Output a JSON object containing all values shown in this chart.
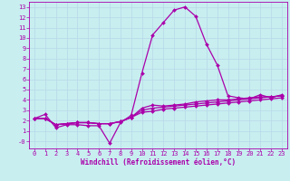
{
  "xlabel": "Windchill (Refroidissement éolien,°C)",
  "background_color": "#c8eef0",
  "line_color": "#aa00aa",
  "grid_color": "#b8d8e8",
  "xlim": [
    -0.5,
    23.5
  ],
  "ylim": [
    -0.7,
    13.5
  ],
  "ytick_vals": [
    0,
    1,
    2,
    3,
    4,
    5,
    6,
    7,
    8,
    9,
    10,
    11,
    12,
    13
  ],
  "ytick_labels": [
    "-0",
    "1",
    "2",
    "3",
    "4",
    "5",
    "6",
    "7",
    "8",
    "9",
    "10",
    "11",
    "12",
    "13"
  ],
  "xtick_vals": [
    0,
    1,
    2,
    3,
    4,
    5,
    6,
    7,
    8,
    9,
    10,
    11,
    12,
    13,
    14,
    15,
    16,
    17,
    18,
    19,
    20,
    21,
    22,
    23
  ],
  "xtick_labels": [
    "0",
    "1",
    "2",
    "3",
    "4",
    "5",
    "6",
    "7",
    "8",
    "9",
    "10",
    "11",
    "12",
    "13",
    "14",
    "15",
    "16",
    "17",
    "18",
    "19",
    "20",
    "21",
    "22",
    "23"
  ],
  "series": [
    [
      2.2,
      2.6,
      1.3,
      1.6,
      1.6,
      1.5,
      1.5,
      -0.2,
      1.8,
      2.5,
      6.6,
      10.3,
      11.5,
      12.7,
      13.0,
      12.1,
      9.4,
      7.4,
      4.4,
      4.2,
      4.1,
      4.5,
      4.2,
      4.5
    ],
    [
      2.2,
      2.2,
      1.6,
      1.7,
      1.8,
      1.8,
      1.7,
      1.7,
      1.9,
      2.3,
      3.2,
      3.5,
      3.4,
      3.5,
      3.6,
      3.8,
      3.9,
      4.0,
      4.0,
      4.1,
      4.2,
      4.3,
      4.3,
      4.4
    ],
    [
      2.2,
      2.2,
      1.6,
      1.7,
      1.8,
      1.8,
      1.7,
      1.7,
      1.9,
      2.3,
      3.0,
      3.2,
      3.3,
      3.4,
      3.5,
      3.6,
      3.7,
      3.8,
      3.9,
      4.0,
      4.1,
      4.2,
      4.3,
      4.4
    ],
    [
      2.2,
      2.2,
      1.6,
      1.7,
      1.8,
      1.8,
      1.7,
      1.7,
      1.9,
      2.3,
      2.8,
      2.9,
      3.1,
      3.2,
      3.3,
      3.4,
      3.5,
      3.6,
      3.7,
      3.8,
      3.9,
      4.0,
      4.1,
      4.2
    ]
  ],
  "marker": "D",
  "markersize": 2.0,
  "linewidth": 0.9,
  "axis_fontsize": 5.5,
  "tick_fontsize": 5.0
}
